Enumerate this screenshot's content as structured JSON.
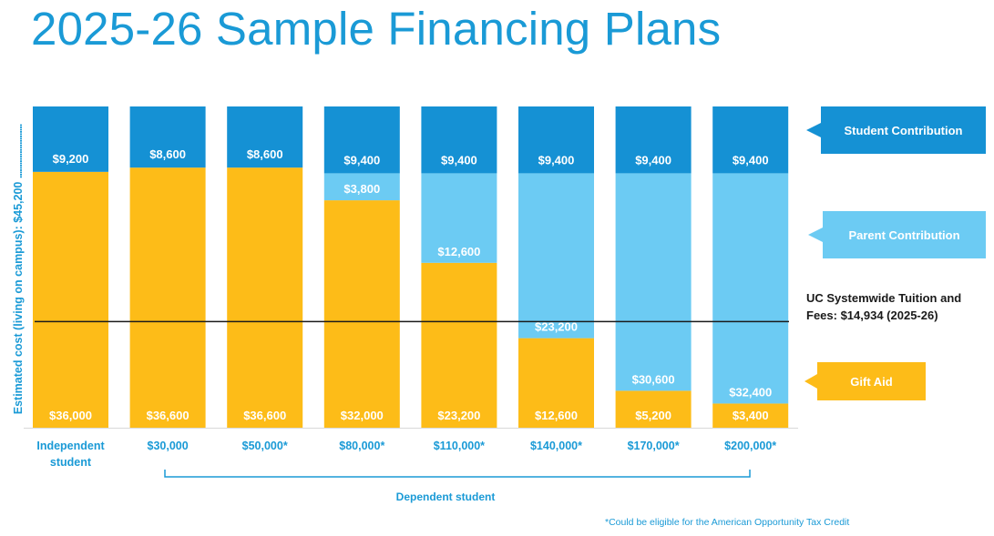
{
  "title": "2025-26 Sample Financing Plans",
  "colors": {
    "student": "#1591d4",
    "parent": "#6ccbf3",
    "gift": "#fdbc18",
    "title": "#1a9ad6",
    "reference_line": "#1a1a1a"
  },
  "chart_data": {
    "type": "bar",
    "stacked": true,
    "title": "2025-26 Sample Financing Plans",
    "ylabel_text": "Estimated cost (living on campus): $45,200",
    "ylim": [
      0,
      45200
    ],
    "categories": [
      [
        "Independent",
        "student"
      ],
      [
        "$30,000"
      ],
      [
        "$50,000*"
      ],
      [
        "$80,000*"
      ],
      [
        "$110,000*"
      ],
      [
        "$140,000*"
      ],
      [
        "$170,000*"
      ],
      [
        "$200,000*"
      ]
    ],
    "series": [
      {
        "name": "Gift Aid",
        "key": "gift",
        "values": [
          36000,
          36600,
          36600,
          32000,
          23200,
          12600,
          5200,
          3400
        ],
        "labels": [
          "$36,000",
          "$36,600",
          "$36,600",
          "$32,000",
          "$23,200",
          "$12,600",
          "$5,200",
          "$3,400"
        ]
      },
      {
        "name": "Parent Contribution",
        "key": "parent",
        "values": [
          0,
          0,
          0,
          3800,
          12600,
          23200,
          30600,
          32400
        ],
        "labels": [
          "",
          "",
          "",
          "$3,800",
          "$12,600",
          "$23,200",
          "$30,600",
          "$32,400"
        ]
      },
      {
        "name": "Student Contribution",
        "key": "student",
        "values": [
          9200,
          8600,
          8600,
          9400,
          9400,
          9400,
          9400,
          9400
        ],
        "labels": [
          "$9,200",
          "$8,600",
          "$8,600",
          "$9,400",
          "$9,400",
          "$9,400",
          "$9,400",
          "$9,400"
        ]
      }
    ],
    "reference_line": {
      "value": 14934,
      "label_lines": [
        "UC Systemwide Tuition and",
        "Fees: $14,934 (2025-26)"
      ]
    },
    "legend": [
      "Student Contribution",
      "Parent Contribution",
      "Gift Aid"
    ],
    "legend_placement": "right",
    "grid": false,
    "bracket_label": "Dependent student",
    "footnote": "*Could be eligible for the American Opportunity Tax Credit"
  }
}
